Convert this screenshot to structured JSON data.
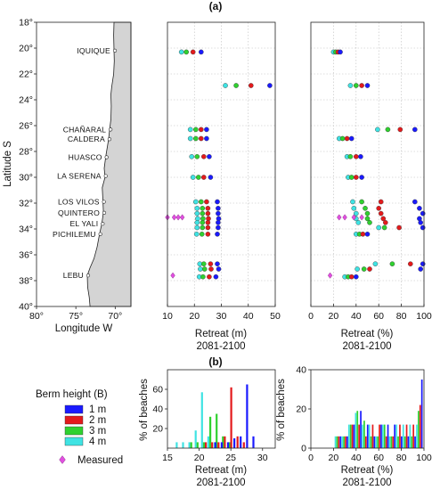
{
  "colors": {
    "b1": "#1a1aff",
    "b2": "#e31a1c",
    "b3": "#2fd12f",
    "b4": "#3fe3e3",
    "measured": "#e14fe0",
    "land": "#d4d4d4"
  },
  "panel_a_label": "(a)",
  "panel_b_label": "(b)",
  "chart_data": [
    {
      "id": "map",
      "type": "map",
      "xlabel": "Longitude W",
      "ylabel": "Latitude S",
      "xlim": [
        80,
        68
      ],
      "ylim": [
        40,
        18
      ],
      "xticks": [
        80,
        75,
        70
      ],
      "xtick_labels": [
        "80°",
        "75°",
        "70°"
      ],
      "yticks": [
        18,
        20,
        22,
        24,
        26,
        28,
        30,
        32,
        34,
        36,
        38,
        40
      ],
      "ytick_labels": [
        "18°",
        "20°",
        "22°",
        "24°",
        "26°",
        "28°",
        "30°",
        "32°",
        "34°",
        "36°",
        "38°",
        "40°"
      ],
      "places": [
        {
          "name": "IQUIQUE",
          "lat": 20.2
        },
        {
          "name": "CHAÑARAL",
          "lat": 26.3
        },
        {
          "name": "CALDERA",
          "lat": 27.05
        },
        {
          "name": "HUASCO",
          "lat": 28.45
        },
        {
          "name": "LA SERENA",
          "lat": 29.9
        },
        {
          "name": "LOS VILOS",
          "lat": 31.9
        },
        {
          "name": "QUINTERO",
          "lat": 32.75
        },
        {
          "name": "EL YALI",
          "lat": 33.6
        },
        {
          "name": "PICHILEMU",
          "lat": 34.4
        },
        {
          "name": "LEBU",
          "lat": 37.6
        }
      ]
    },
    {
      "id": "retreat_m",
      "type": "scatter",
      "xlabel": "Retreat (m)",
      "xlabel2": "2081-2100",
      "xlim": [
        10,
        50
      ],
      "ylim": [
        40,
        18
      ],
      "xticks": [
        10,
        20,
        30,
        40,
        50
      ],
      "xtick_labels": [
        "10",
        "20",
        "30",
        "40",
        "50"
      ],
      "series": [
        {
          "color_key": "b4",
          "points": [
            [
              15.2,
              20.3
            ],
            [
              31.5,
              22.9
            ],
            [
              18.5,
              26.3
            ],
            [
              18.5,
              27.0
            ],
            [
              19.0,
              28.4
            ],
            [
              19.5,
              30.0
            ],
            [
              20.5,
              31.9
            ],
            [
              21.0,
              32.4
            ],
            [
              21.0,
              32.8
            ],
            [
              21.2,
              33.2
            ],
            [
              21.0,
              33.5
            ],
            [
              21.0,
              33.9
            ],
            [
              20.8,
              34.4
            ],
            [
              22.0,
              36.7
            ],
            [
              22.2,
              37.1
            ],
            [
              21.8,
              37.7
            ]
          ]
        },
        {
          "color_key": "b3",
          "points": [
            [
              17.0,
              20.3
            ],
            [
              35.5,
              22.9
            ],
            [
              20.5,
              26.3
            ],
            [
              20.5,
              27.0
            ],
            [
              21.0,
              28.4
            ],
            [
              21.5,
              30.0
            ],
            [
              22.5,
              31.9
            ],
            [
              23.0,
              32.4
            ],
            [
              23.0,
              32.8
            ],
            [
              23.2,
              33.2
            ],
            [
              23.0,
              33.5
            ],
            [
              23.0,
              33.9
            ],
            [
              22.8,
              34.4
            ],
            [
              23.5,
              36.7
            ],
            [
              23.8,
              37.1
            ],
            [
              23.2,
              37.7
            ]
          ]
        },
        {
          "color_key": "b2",
          "points": [
            [
              19.5,
              20.3
            ],
            [
              41.0,
              22.9
            ],
            [
              22.5,
              26.3
            ],
            [
              22.5,
              27.0
            ],
            [
              23.5,
              28.4
            ],
            [
              23.5,
              30.0
            ],
            [
              24.5,
              31.9
            ],
            [
              25.0,
              32.4
            ],
            [
              25.0,
              32.8
            ],
            [
              25.2,
              33.2
            ],
            [
              25.0,
              33.5
            ],
            [
              25.0,
              33.9
            ],
            [
              25.0,
              34.4
            ],
            [
              26.0,
              36.7
            ],
            [
              26.2,
              37.1
            ],
            [
              25.5,
              37.7
            ]
          ]
        },
        {
          "color_key": "b1",
          "points": [
            [
              22.5,
              20.3
            ],
            [
              48.0,
              22.9
            ],
            [
              24.5,
              26.3
            ],
            [
              24.5,
              27.0
            ],
            [
              25.5,
              28.4
            ],
            [
              26.0,
              30.0
            ],
            [
              28.5,
              31.9
            ],
            [
              28.8,
              32.4
            ],
            [
              28.8,
              32.8
            ],
            [
              29.0,
              33.2
            ],
            [
              28.8,
              33.5
            ],
            [
              28.8,
              33.9
            ],
            [
              28.5,
              34.4
            ],
            [
              28.5,
              36.7
            ],
            [
              29.0,
              37.1
            ],
            [
              28.0,
              37.7
            ]
          ]
        }
      ],
      "measured": [
        [
          10.0,
          33.1
        ],
        [
          12.5,
          33.1
        ],
        [
          14.0,
          33.1
        ],
        [
          15.5,
          33.1
        ],
        [
          12.0,
          37.6
        ]
      ]
    },
    {
      "id": "retreat_pct",
      "type": "scatter",
      "xlabel": "Retreat (%)",
      "xlabel2": "2081-2100",
      "xlim": [
        0,
        100
      ],
      "ylim": [
        40,
        18
      ],
      "xticks": [
        0,
        20,
        40,
        60,
        80,
        100
      ],
      "xtick_labels": [
        "0",
        "20",
        "40",
        "60",
        "80",
        "100"
      ],
      "series": [
        {
          "color_key": "b4",
          "points": [
            [
              20.0,
              20.3
            ],
            [
              35.0,
              22.9
            ],
            [
              59.0,
              26.3
            ],
            [
              25.0,
              27.0
            ],
            [
              32.0,
              28.4
            ],
            [
              33.0,
              30.0
            ],
            [
              37.0,
              31.9
            ],
            [
              38.0,
              32.4
            ],
            [
              40.0,
              32.8
            ],
            [
              40.0,
              33.2
            ],
            [
              42.0,
              33.5
            ],
            [
              60.0,
              33.9
            ],
            [
              40.0,
              34.4
            ],
            [
              57.0,
              36.7
            ],
            [
              41.0,
              37.1
            ],
            [
              30.0,
              37.7
            ]
          ]
        },
        {
          "color_key": "b3",
          "points": [
            [
              22.0,
              20.3
            ],
            [
              40.0,
              22.9
            ],
            [
              68.0,
              26.3
            ],
            [
              28.0,
              27.0
            ],
            [
              35.0,
              28.4
            ],
            [
              36.0,
              30.0
            ],
            [
              45.0,
              31.9
            ],
            [
              48.0,
              32.4
            ],
            [
              50.0,
              32.8
            ],
            [
              50.0,
              33.2
            ],
            [
              52.0,
              33.5
            ],
            [
              65.0,
              33.9
            ],
            [
              43.0,
              34.4
            ],
            [
              72.0,
              36.7
            ],
            [
              47.0,
              37.1
            ],
            [
              33.0,
              37.7
            ]
          ]
        },
        {
          "color_key": "b2",
          "points": [
            [
              24.0,
              20.3
            ],
            [
              45.0,
              22.9
            ],
            [
              79.0,
              26.3
            ],
            [
              32.0,
              27.0
            ],
            [
              40.0,
              28.4
            ],
            [
              40.0,
              30.0
            ],
            [
              62.0,
              31.9
            ],
            [
              60.0,
              32.4
            ],
            [
              62.0,
              32.8
            ],
            [
              64.0,
              33.2
            ],
            [
              66.0,
              33.5
            ],
            [
              78.0,
              33.9
            ],
            [
              46.0,
              34.4
            ],
            [
              88.0,
              36.7
            ],
            [
              52.0,
              37.1
            ],
            [
              36.0,
              37.7
            ]
          ]
        },
        {
          "color_key": "b1",
          "points": [
            [
              26.0,
              20.3
            ],
            [
              50.0,
              22.9
            ],
            [
              92.0,
              26.3
            ],
            [
              36.0,
              27.0
            ],
            [
              44.0,
              28.4
            ],
            [
              45.0,
              30.0
            ],
            [
              92.0,
              31.9
            ],
            [
              96.0,
              32.4
            ],
            [
              99.0,
              32.8
            ],
            [
              96.0,
              33.2
            ],
            [
              97.0,
              33.5
            ],
            [
              99.0,
              33.9
            ],
            [
              50.0,
              34.4
            ],
            [
              99.0,
              36.7
            ],
            [
              97.0,
              37.1
            ],
            [
              40.0,
              37.7
            ]
          ]
        }
      ],
      "measured": [
        [
          25.0,
          33.1
        ],
        [
          30.0,
          33.1
        ],
        [
          38.0,
          33.1
        ],
        [
          45.0,
          33.1
        ],
        [
          17.0,
          37.6
        ]
      ]
    },
    {
      "id": "hist_m",
      "type": "bar",
      "ylabel": "% of beaches",
      "xlabel": "Retreat (m)",
      "xlabel2": "2081-2100",
      "xlim": [
        15,
        32
      ],
      "ylim": [
        0,
        80
      ],
      "xticks": [
        15,
        20,
        25,
        30
      ],
      "xtick_labels": [
        "15",
        "20",
        "25",
        "30"
      ],
      "yticks": [
        20,
        40,
        60
      ],
      "ytick_labels": [
        "20",
        "40",
        "60"
      ],
      "series": [
        {
          "color_key": "b4",
          "x": [
            16.3,
            17.3,
            18.3,
            19.3,
            20.3,
            21.3,
            22.3
          ],
          "values": [
            6,
            6,
            6,
            18,
            57,
            12,
            6
          ]
        },
        {
          "color_key": "b3",
          "x": [
            18.6,
            19.6,
            20.6,
            21.6,
            22.6,
            23.6,
            24.6
          ],
          "values": [
            6,
            6,
            6,
            32,
            35,
            12,
            6
          ]
        },
        {
          "color_key": "b2",
          "x": [
            20.9,
            21.9,
            22.9,
            23.9,
            24.9,
            25.9,
            26.9
          ],
          "values": [
            6,
            6,
            6,
            12,
            62,
            12,
            6
          ]
        },
        {
          "color_key": "b1",
          "x": [
            22.4,
            23.4,
            24.4,
            25.4,
            26.4,
            27.4,
            28.4
          ],
          "values": [
            6,
            6,
            6,
            10,
            12,
            65,
            12
          ]
        }
      ]
    },
    {
      "id": "hist_pct",
      "type": "bar",
      "xlabel": "Retreat (%)",
      "xlabel2": "2081-2100",
      "xlim": [
        0,
        100
      ],
      "ylim": [
        0,
        40
      ],
      "xticks": [
        0,
        20,
        40,
        60,
        80,
        100
      ],
      "xtick_labels": [
        "0",
        "20",
        "40",
        "60",
        "80",
        "100"
      ],
      "yticks": [
        0,
        20,
        40
      ],
      "ytick_labels": [
        "0",
        "20",
        "40"
      ],
      "series": [
        {
          "color_key": "b4",
          "x": [
            21,
            27,
            33,
            39,
            45,
            51,
            57,
            63,
            69,
            75,
            81,
            87,
            93,
            99
          ],
          "values": [
            6,
            6,
            12,
            18,
            12,
            12,
            6,
            12,
            6,
            12,
            12,
            12,
            12,
            12
          ]
        },
        {
          "color_key": "b3",
          "x": [
            22.5,
            28.5,
            34.5,
            40.5,
            46.5,
            52.5,
            58.5,
            64.5,
            70.5,
            76.5,
            82.5,
            88.5,
            94.5,
            100.5
          ],
          "values": [
            6,
            6,
            12,
            19,
            14,
            6,
            6,
            12,
            6,
            6,
            6,
            6,
            19,
            14
          ]
        },
        {
          "color_key": "b2",
          "x": [
            24,
            30,
            36,
            42,
            48,
            54,
            60,
            66,
            72,
            78,
            84,
            90,
            96,
            102
          ],
          "values": [
            6,
            6,
            12,
            12,
            6,
            12,
            12,
            6,
            6,
            12,
            12,
            12,
            22,
            12
          ]
        },
        {
          "color_key": "b1",
          "x": [
            25.5,
            31.5,
            37.5,
            43.5,
            49.5,
            55.5,
            61.5,
            67.5,
            73.5,
            79.5,
            85.5,
            91.5,
            97.5,
            103.5
          ],
          "values": [
            6,
            6,
            12,
            19,
            12,
            6,
            12,
            12,
            12,
            6,
            6,
            6,
            35,
            12
          ]
        }
      ]
    }
  ],
  "legend": {
    "title": "Berm height (B)",
    "items": [
      {
        "label": "1 m",
        "color_key": "b1"
      },
      {
        "label": "2 m",
        "color_key": "b2"
      },
      {
        "label": "3 m",
        "color_key": "b3"
      },
      {
        "label": "4 m",
        "color_key": "b4"
      }
    ],
    "measured_label": "Measured"
  }
}
